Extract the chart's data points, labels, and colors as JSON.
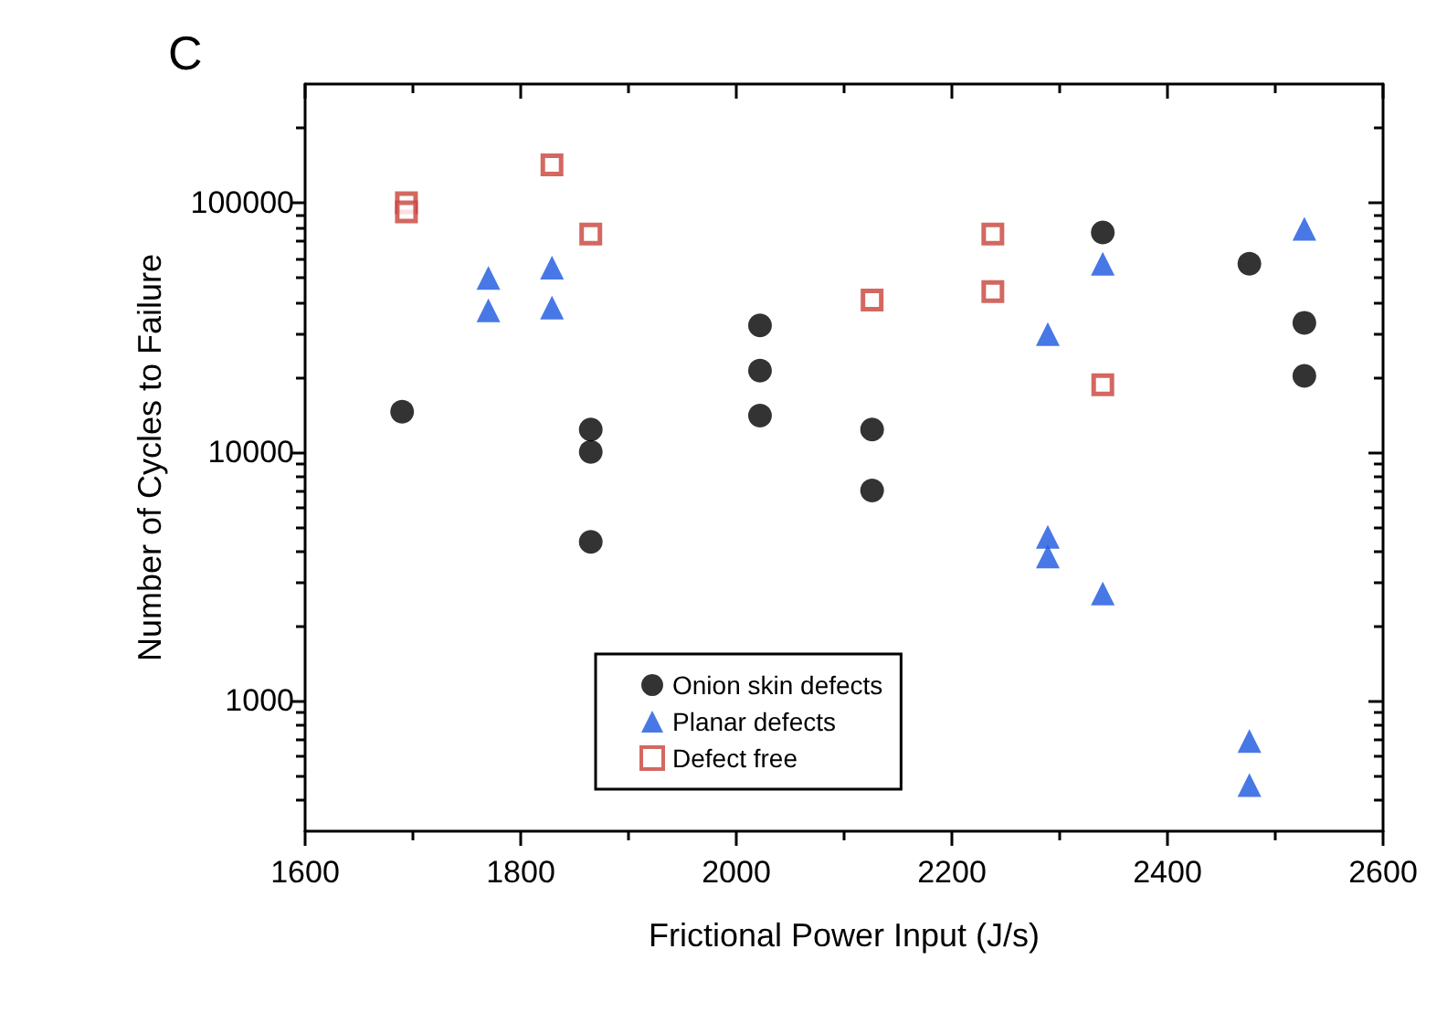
{
  "chart_data": {
    "type": "scatter",
    "annotations": [
      "C"
    ],
    "xlabel": "Frictional Power Input (J/s)",
    "ylabel": "Number of Cycles to Failure",
    "xlim": [
      1600,
      2600
    ],
    "xticks": [
      1600,
      1800,
      2000,
      2200,
      2400,
      2600
    ],
    "ylim": [
      300,
      300000
    ],
    "yticks": [
      1000,
      10000,
      100000
    ],
    "log": "y",
    "grid": false,
    "legend": "bottom",
    "series": [
      {
        "name": "Onion skin defects",
        "color": "#000000",
        "marker": "circle",
        "x": [
          1690,
          1865,
          1865,
          1865,
          2022,
          2022,
          2022,
          2126,
          2126,
          2340,
          2476,
          2527,
          2527
        ],
        "values": [
          14500,
          12300,
          10000,
          4350,
          32200,
          21200,
          14000,
          12300,
          7000,
          76000,
          57000,
          33000,
          20200
        ]
      },
      {
        "name": "Planar defects",
        "color": "#1a56e0",
        "marker": "triangle",
        "x": [
          1770,
          1770,
          1829,
          1829,
          2289,
          2289,
          2289,
          2340,
          2340,
          2476,
          2476,
          2527
        ],
        "values": [
          50000,
          37000,
          55000,
          38000,
          29700,
          4560,
          3800,
          57000,
          2700,
          690,
          460,
          78700
        ]
      },
      {
        "name": "Defect free",
        "color": "#c8423a",
        "marker": "square",
        "x": [
          1694,
          1694,
          1829,
          1865,
          2126,
          2238,
          2238,
          2340
        ],
        "values": [
          100000,
          92000,
          142000,
          75000,
          40700,
          75000,
          44000,
          18600
        ]
      }
    ]
  }
}
